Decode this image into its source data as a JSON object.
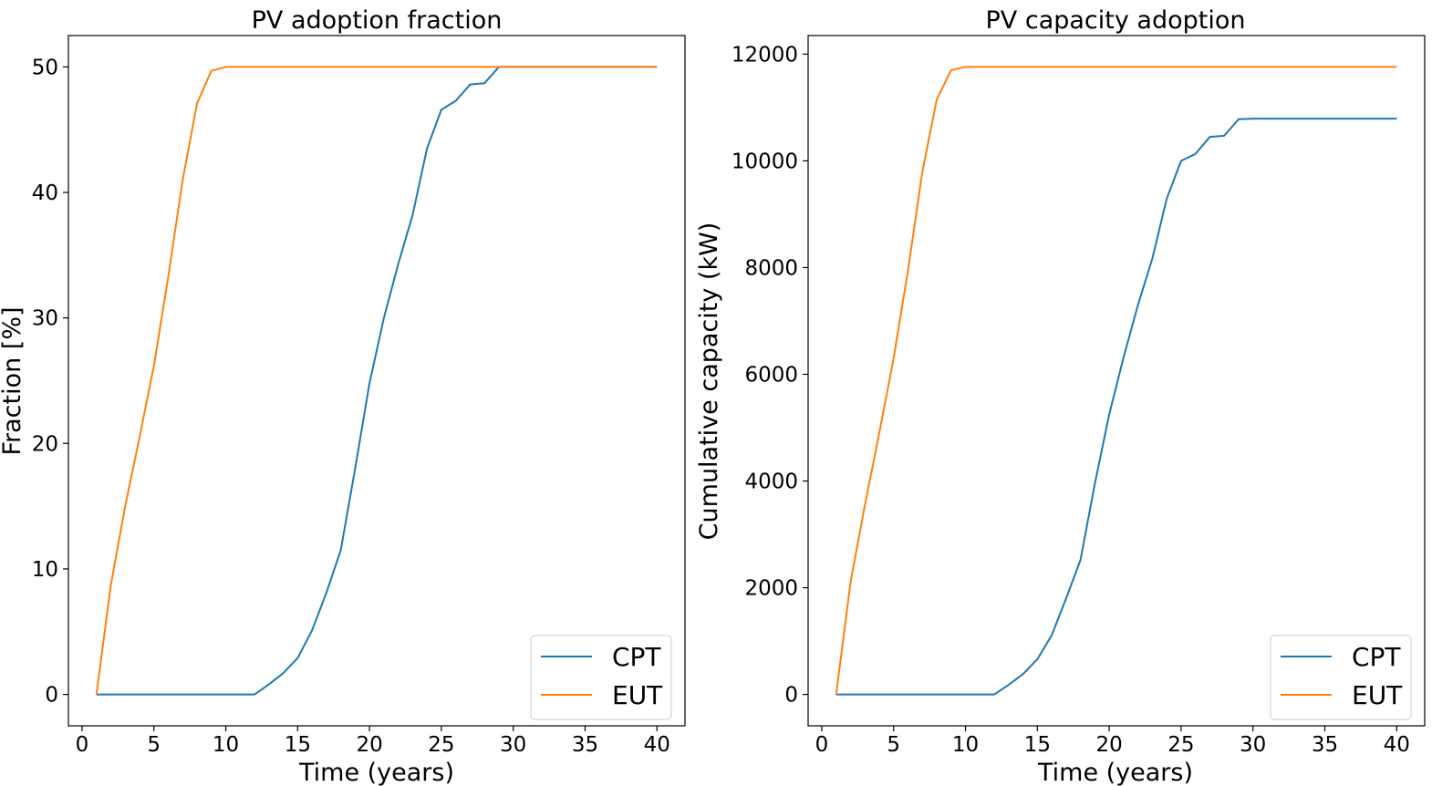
{
  "chart_data": [
    {
      "type": "line",
      "title": "PV adoption fraction",
      "xlabel": "Time (years)",
      "ylabel": "Fraction [%]",
      "xlim": [
        -0.95,
        41.95
      ],
      "ylim": [
        -2.5,
        52.5
      ],
      "xticks": [
        0,
        5,
        10,
        15,
        20,
        25,
        30,
        35,
        40
      ],
      "yticks": [
        0,
        10,
        20,
        30,
        40,
        50
      ],
      "legend_position": "lower-right",
      "x": [
        1,
        2,
        3,
        4,
        5,
        6,
        7,
        8,
        9,
        10,
        11,
        12,
        13,
        14,
        15,
        16,
        17,
        18,
        19,
        20,
        21,
        22,
        23,
        24,
        25,
        26,
        27,
        28,
        29,
        30,
        31,
        32,
        33,
        34,
        35,
        36,
        37,
        38,
        39,
        40
      ],
      "series": [
        {
          "name": "CPT",
          "color": "#1f77b4",
          "values": [
            0,
            0,
            0,
            0,
            0,
            0,
            0,
            0,
            0,
            0,
            0,
            0,
            0.8,
            1.7,
            2.9,
            5.1,
            8.1,
            11.5,
            18.0,
            24.8,
            30.0,
            34.3,
            38.2,
            43.5,
            46.6,
            47.3,
            48.6,
            48.7,
            50.0,
            50.0,
            50.0,
            50.0,
            50.0,
            50.0,
            50.0,
            50.0,
            50.0,
            50.0,
            50.0,
            50.0
          ]
        },
        {
          "name": "EUT",
          "color": "#ff7f0e",
          "values": [
            0,
            8.7,
            15.0,
            20.5,
            26.2,
            33.3,
            41.0,
            47.1,
            49.7,
            50.0,
            50.0,
            50.0,
            50.0,
            50.0,
            50.0,
            50.0,
            50.0,
            50.0,
            50.0,
            50.0,
            50.0,
            50.0,
            50.0,
            50.0,
            50.0,
            50.0,
            50.0,
            50.0,
            50.0,
            50.0,
            50.0,
            50.0,
            50.0,
            50.0,
            50.0,
            50.0,
            50.0,
            50.0,
            50.0,
            50.0
          ]
        }
      ]
    },
    {
      "type": "line",
      "title": "PV capacity adoption",
      "xlabel": "Time (years)",
      "ylabel": "Cumulative capacity (kW)",
      "xlim": [
        -0.95,
        41.95
      ],
      "ylim": [
        -588,
        12348
      ],
      "xticks": [
        0,
        5,
        10,
        15,
        20,
        25,
        30,
        35,
        40
      ],
      "yticks": [
        0,
        2000,
        4000,
        6000,
        8000,
        10000,
        12000
      ],
      "legend_position": "lower-right",
      "x": [
        1,
        2,
        3,
        4,
        5,
        6,
        7,
        8,
        9,
        10,
        11,
        12,
        13,
        14,
        15,
        16,
        17,
        18,
        19,
        20,
        21,
        22,
        23,
        24,
        25,
        26,
        27,
        28,
        29,
        30,
        31,
        32,
        33,
        34,
        35,
        36,
        37,
        38,
        39,
        40
      ],
      "series": [
        {
          "name": "CPT",
          "color": "#1f77b4",
          "values": [
            0,
            0,
            0,
            0,
            0,
            0,
            0,
            0,
            0,
            0,
            0,
            0,
            180,
            380,
            660,
            1110,
            1800,
            2520,
            3950,
            5250,
            6320,
            7300,
            8170,
            9290,
            10000,
            10130,
            10450,
            10470,
            10780,
            10790,
            10790,
            10790,
            10790,
            10790,
            10790,
            10790,
            10790,
            10790,
            10790,
            10790
          ]
        },
        {
          "name": "EUT",
          "color": "#ff7f0e",
          "values": [
            0,
            2100,
            3550,
            4900,
            6300,
            7950,
            9800,
            11150,
            11700,
            11760,
            11760,
            11760,
            11760,
            11760,
            11760,
            11760,
            11760,
            11760,
            11760,
            11760,
            11760,
            11760,
            11760,
            11760,
            11760,
            11760,
            11760,
            11760,
            11760,
            11760,
            11760,
            11760,
            11760,
            11760,
            11760,
            11760,
            11760,
            11760,
            11760,
            11760
          ]
        }
      ]
    }
  ]
}
